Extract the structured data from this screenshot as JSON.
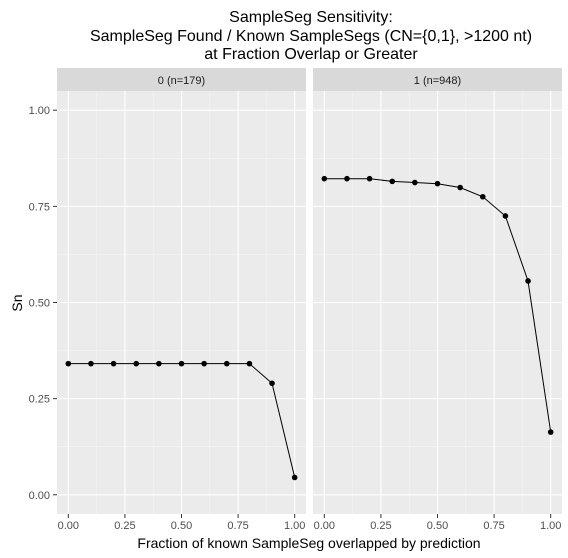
{
  "chart_data": {
    "type": "line",
    "title_lines": [
      "SampleSeg Sensitivity:",
      "SampleSeg Found / Known SampleSegs (CN={0,1}, >1200 nt)",
      "at Fraction Overlap or Greater"
    ],
    "xlabel": "Fraction of known SampleSeg overlapped by prediction",
    "ylabel": "Sn",
    "xlim": [
      -0.05,
      1.05
    ],
    "ylim": [
      -0.05,
      1.05
    ],
    "x_ticks": [
      0.0,
      0.25,
      0.5,
      0.75,
      1.0
    ],
    "x_tick_labels": [
      "0.00",
      "0.25",
      "0.50",
      "0.75",
      "1.00"
    ],
    "y_ticks": [
      0.0,
      0.25,
      0.5,
      0.75,
      1.0
    ],
    "y_tick_labels": [
      "0.00",
      "0.25",
      "0.50",
      "0.75",
      "1.00"
    ],
    "grid": true,
    "x": [
      0.0,
      0.1,
      0.2,
      0.3,
      0.4,
      0.5,
      0.6,
      0.7,
      0.8,
      0.9,
      1.0
    ],
    "panels": [
      {
        "label": "0 (n=179)",
        "values": [
          0.341,
          0.341,
          0.341,
          0.341,
          0.341,
          0.341,
          0.341,
          0.341,
          0.341,
          0.29,
          0.045
        ]
      },
      {
        "label": "1 (n=948)",
        "values": [
          0.822,
          0.822,
          0.822,
          0.815,
          0.812,
          0.809,
          0.799,
          0.775,
          0.725,
          0.556,
          0.163
        ]
      }
    ],
    "colors": {
      "panel_bg": "#ebebeb",
      "strip_bg": "#d9d9d9",
      "grid_major": "#ffffff",
      "grid_minor": "#f5f5f5",
      "line": "#000000",
      "point": "#000000",
      "tick": "#333333"
    }
  }
}
